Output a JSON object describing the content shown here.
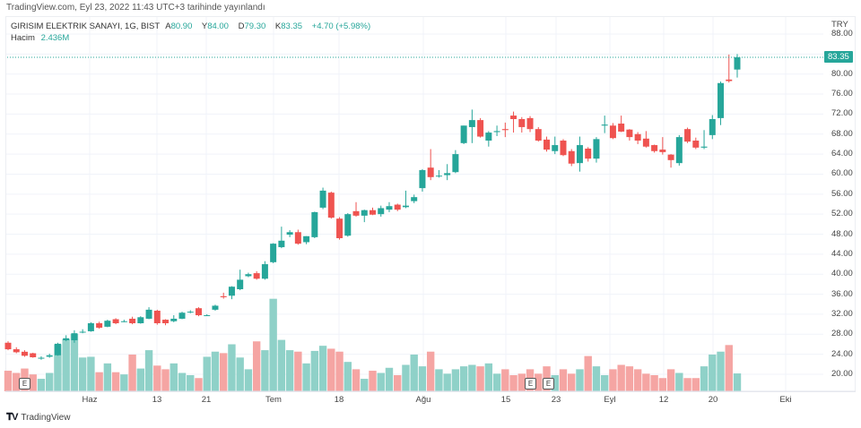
{
  "published": "TradingView.com, Eyl 23, 2022 11:43 UTC+3 tarihinde yayınlandı",
  "legend": {
    "symbol": "GIRISIM ELEKTRIK SANAYI, 1G, BIST",
    "open_label": "A",
    "open": "80.90",
    "high_label": "Y",
    "high": "84.00",
    "low_label": "D",
    "low": "79.30",
    "close_label": "K",
    "close": "83.35",
    "change": "+4.70 (+5.98%)",
    "volume_label": "Hacim",
    "volume": "2.436M"
  },
  "currency": "TRY",
  "current_price": "83.35",
  "price_axis": [
    "88.00",
    "84.00",
    "80.00",
    "76.00",
    "72.00",
    "68.00",
    "64.00",
    "60.00",
    "56.00",
    "52.00",
    "48.00",
    "44.00",
    "40.00",
    "36.00",
    "32.00",
    "28.00",
    "24.00",
    "20.00"
  ],
  "date_axis": [
    "Haz",
    "13",
    "21",
    "Tem",
    "18",
    "Ağu",
    "15",
    "23",
    "Eyl",
    "12",
    "20",
    "Eki"
  ],
  "event_marker": "E",
  "footer": {
    "brand": "TradingView",
    "logo": "TV"
  },
  "colors": {
    "up": "#26a69a",
    "down": "#ef5350",
    "vol_up": "#8fd1c8",
    "vol_down": "#f5a5a3",
    "grid": "#f0f3fa"
  },
  "candles_ohlcv": [
    [
      26.3,
      26.6,
      24.8,
      25.0,
      2.8
    ],
    [
      25.0,
      25.4,
      24.2,
      24.4,
      2.5
    ],
    [
      24.5,
      24.8,
      23.5,
      23.7,
      3.1
    ],
    [
      24.2,
      24.3,
      23.3,
      23.4,
      2.3
    ],
    [
      23.3,
      23.6,
      22.9,
      23.3,
      1.7
    ],
    [
      23.5,
      24.1,
      23.3,
      23.8,
      2.5
    ],
    [
      23.8,
      26.3,
      23.7,
      26.1,
      6.4
    ],
    [
      26.8,
      27.8,
      26.6,
      27.2,
      7.1
    ],
    [
      26.8,
      28.8,
      26.3,
      28.2,
      7.8
    ],
    [
      28.4,
      29.0,
      28.2,
      28.5,
      4.6
    ],
    [
      28.6,
      30.4,
      28.5,
      30.2,
      4.7
    ],
    [
      30.2,
      30.5,
      29.1,
      29.3,
      2.6
    ],
    [
      29.5,
      30.9,
      29.4,
      30.7,
      3.8
    ],
    [
      31.0,
      31.2,
      30.0,
      30.2,
      2.6
    ],
    [
      30.5,
      30.9,
      30.4,
      30.6,
      2.3
    ],
    [
      31.1,
      31.5,
      30.0,
      30.2,
      5.0
    ],
    [
      30.2,
      31.6,
      30.1,
      31.4,
      3.1
    ],
    [
      31.1,
      33.4,
      31.0,
      32.9,
      5.6
    ],
    [
      32.7,
      32.9,
      29.9,
      30.2,
      3.5
    ],
    [
      30.9,
      31.0,
      29.8,
      30.2,
      3.0
    ],
    [
      30.6,
      31.8,
      30.4,
      31.1,
      3.8
    ],
    [
      31.1,
      32.5,
      31.0,
      32.3,
      2.5
    ],
    [
      32.4,
      32.8,
      32.2,
      32.5,
      2.2
    ],
    [
      33.2,
      33.4,
      31.6,
      31.8,
      1.8
    ],
    [
      31.8,
      32.0,
      31.7,
      31.8,
      4.7
    ],
    [
      32.9,
      33.9,
      32.7,
      33.7,
      5.4
    ],
    [
      35.6,
      36.3,
      35.1,
      35.4,
      5.2
    ],
    [
      35.7,
      37.6,
      35.0,
      37.5,
      6.4
    ],
    [
      37.0,
      40.9,
      36.8,
      38.9,
      4.6
    ],
    [
      39.6,
      40.3,
      39.4,
      40.0,
      3.0
    ],
    [
      40.2,
      40.6,
      38.9,
      39.1,
      6.8
    ],
    [
      39.1,
      42.6,
      38.9,
      42.0,
      5.6
    ],
    [
      42.4,
      46.2,
      42.2,
      46.1,
      12.6
    ],
    [
      45.4,
      49.5,
      45.2,
      46.7,
      7.0
    ],
    [
      47.9,
      48.8,
      47.4,
      48.4,
      5.6
    ],
    [
      48.4,
      48.9,
      45.9,
      46.1,
      5.4
    ],
    [
      46.4,
      47.6,
      46.0,
      47.6,
      3.8
    ],
    [
      47.4,
      52.5,
      47.2,
      52.4,
      5.5
    ],
    [
      53.3,
      57.3,
      53.0,
      56.7,
      6.2
    ],
    [
      56.3,
      56.5,
      51.1,
      51.3,
      5.8
    ],
    [
      51.1,
      51.4,
      46.9,
      47.2,
      5.4
    ],
    [
      47.7,
      52.2,
      47.5,
      52.0,
      4.0
    ],
    [
      52.6,
      54.4,
      51.5,
      51.7,
      3.0
    ],
    [
      51.7,
      52.9,
      50.4,
      52.8,
      1.7
    ],
    [
      52.8,
      53.3,
      51.8,
      51.9,
      2.8
    ],
    [
      52.0,
      53.7,
      51.5,
      53.2,
      2.5
    ],
    [
      52.9,
      54.4,
      52.4,
      53.6,
      3.2
    ],
    [
      53.9,
      54.1,
      52.6,
      52.9,
      2.2
    ],
    [
      53.4,
      56.7,
      53.2,
      53.7,
      3.6
    ],
    [
      54.6,
      55.9,
      54.2,
      55.4,
      5.0
    ],
    [
      57.2,
      61.0,
      56.5,
      60.8,
      3.4
    ],
    [
      61.3,
      65.0,
      58.8,
      59.4,
      5.4
    ],
    [
      59.6,
      60.8,
      59.3,
      59.7,
      3.0
    ],
    [
      59.8,
      62.0,
      58.8,
      60.2,
      2.4
    ],
    [
      60.4,
      64.8,
      60.2,
      64.0,
      3.0
    ],
    [
      66.2,
      69.7,
      66.0,
      69.7,
      3.4
    ],
    [
      69.4,
      72.9,
      66.2,
      70.8,
      3.6
    ],
    [
      70.8,
      71.2,
      67.3,
      67.5,
      3.4
    ],
    [
      66.7,
      68.6,
      65.5,
      68.3,
      3.8
    ],
    [
      68.4,
      69.7,
      67.6,
      68.6,
      2.4
    ],
    [
      69.0,
      70.3,
      67.4,
      68.8,
      3.0
    ],
    [
      71.7,
      72.5,
      68.3,
      71.0,
      2.2
    ],
    [
      71.0,
      71.4,
      68.3,
      69.4,
      2.4
    ],
    [
      71.2,
      71.6,
      68.4,
      69.0,
      3.0
    ],
    [
      69.0,
      69.4,
      66.5,
      66.7,
      2.4
    ],
    [
      66.9,
      67.5,
      64.5,
      64.9,
      3.4
    ],
    [
      64.6,
      67.5,
      64.0,
      65.8,
      2.2
    ],
    [
      66.7,
      67.0,
      63.6,
      63.8,
      3.0
    ],
    [
      64.6,
      65.0,
      61.6,
      62.1,
      2.4
    ],
    [
      62.2,
      67.5,
      60.5,
      65.8,
      3.0
    ],
    [
      65.1,
      65.4,
      62.5,
      63.1,
      4.8
    ],
    [
      63.1,
      67.4,
      62.3,
      67.0,
      3.4
    ],
    [
      69.7,
      71.7,
      68.2,
      69.9,
      2.2
    ],
    [
      69.7,
      70.2,
      67.0,
      67.2,
      3.0
    ],
    [
      70.1,
      71.7,
      68.4,
      68.5,
      3.6
    ],
    [
      68.9,
      69.0,
      66.7,
      67.4,
      3.4
    ],
    [
      68.0,
      68.4,
      66.0,
      66.7,
      3.0
    ],
    [
      67.1,
      68.6,
      65.3,
      65.5,
      2.4
    ],
    [
      65.8,
      65.9,
      64.3,
      64.6,
      2.2
    ],
    [
      64.9,
      67.4,
      63.9,
      64.4,
      1.8
    ],
    [
      63.9,
      64.0,
      61.3,
      62.8,
      3.0
    ],
    [
      62.2,
      67.8,
      61.7,
      67.4,
      2.5
    ],
    [
      69.0,
      69.3,
      66.2,
      66.5,
      1.8
    ],
    [
      66.7,
      67.3,
      65.0,
      65.3,
      1.8
    ],
    [
      65.3,
      68.8,
      65.0,
      65.5,
      3.4
    ],
    [
      67.8,
      71.8,
      67.0,
      71.0,
      5.0
    ],
    [
      71.2,
      78.5,
      69.8,
      78.2,
      5.4
    ],
    [
      78.9,
      83.9,
      78.3,
      78.6,
      6.3
    ],
    [
      80.9,
      84.0,
      79.3,
      83.35,
      2.436
    ]
  ]
}
